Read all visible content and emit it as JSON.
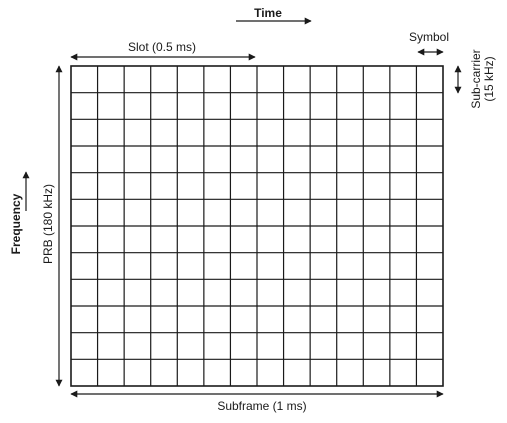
{
  "labels": {
    "time": "Time",
    "slot": "Slot (0.5 ms)",
    "symbol": "Symbol",
    "subcarrier_line1": "Sub-carrier",
    "subcarrier_line2": "(15 kHz)",
    "frequency": "Frequency",
    "prb": "PRB (180 kHz)",
    "subframe": "Subframe (1 ms)"
  },
  "grid": {
    "columns": 14,
    "rows": 12
  },
  "colors": {
    "ink": "#1a1a1a",
    "background": "#ffffff"
  }
}
